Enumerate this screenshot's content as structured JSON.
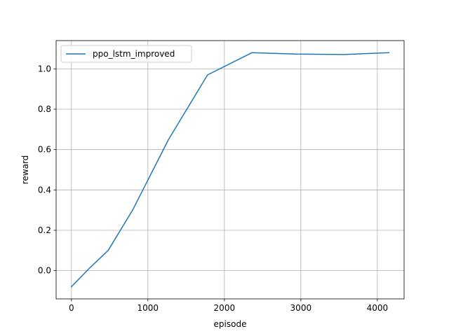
{
  "chart_data": {
    "type": "line",
    "xlabel": "episode",
    "ylabel": "reward",
    "xlim": [
      -200,
      4350
    ],
    "ylim": [
      -0.14,
      1.14
    ],
    "xticks": [
      0,
      1000,
      2000,
      3000,
      4000
    ],
    "yticks": [
      0.0,
      0.2,
      0.4,
      0.6,
      0.8,
      1.0
    ],
    "xtick_labels": [
      "0",
      "1000",
      "2000",
      "3000",
      "4000"
    ],
    "ytick_labels": [
      "0.0",
      "0.2",
      "0.4",
      "0.6",
      "0.8",
      "1.0"
    ],
    "grid": true,
    "legend_position": "upper-left",
    "series": [
      {
        "name": "ppo_lstm_improved",
        "color": "#1f77b4",
        "x": [
          0,
          230,
          480,
          800,
          1270,
          1780,
          2360,
          2950,
          3560,
          4150
        ],
        "y": [
          -0.08,
          0.01,
          0.1,
          0.3,
          0.65,
          0.97,
          1.08,
          1.073,
          1.071,
          1.08
        ]
      }
    ]
  }
}
